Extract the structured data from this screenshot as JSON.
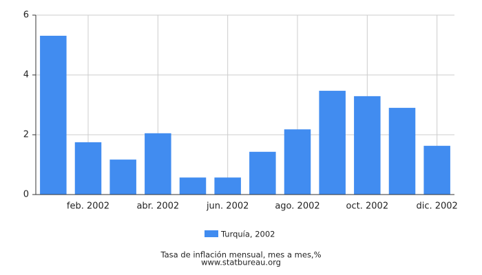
{
  "chart_data": {
    "type": "bar",
    "categories": [
      null,
      "feb. 2002",
      null,
      "abr. 2002",
      null,
      "jun. 2002",
      null,
      "ago. 2002",
      null,
      "oct. 2002",
      null,
      "dic. 2002"
    ],
    "series": [
      {
        "name": "Turquía, 2002",
        "color": "#418cf0",
        "values": [
          5.31,
          1.75,
          1.17,
          2.05,
          0.57,
          0.57,
          1.43,
          2.18,
          3.47,
          3.29,
          2.9,
          1.63
        ]
      }
    ],
    "ylim": [
      0,
      6
    ],
    "yticks": [
      0,
      2,
      4,
      6
    ],
    "grid": true,
    "footer": [
      "Tasa de inflación mensual, mes a mes,%",
      "www.statbureau.org"
    ]
  }
}
